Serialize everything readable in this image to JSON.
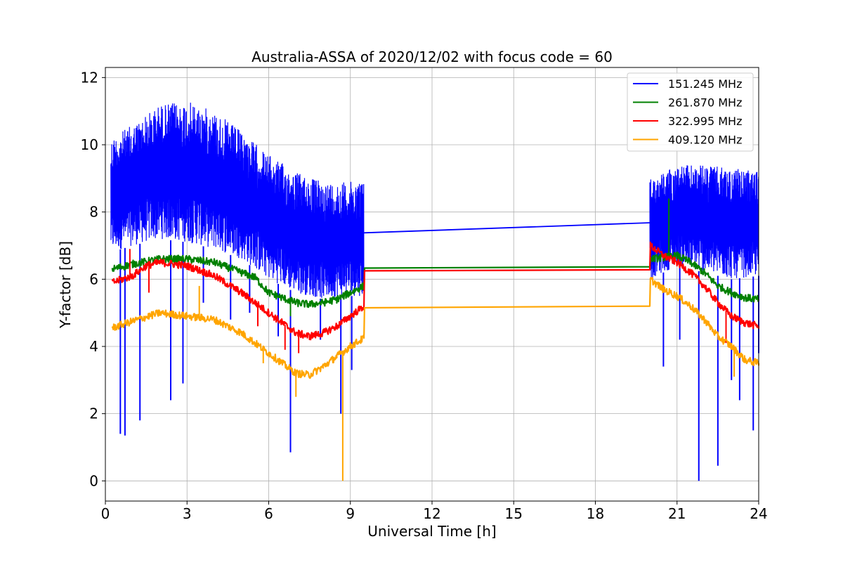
{
  "chart_data": {
    "type": "line",
    "title": "Australia-ASSA of 2020/12/02 with focus code = 60",
    "xlabel": "Universal Time [h]",
    "ylabel": "Y-factor [dB]",
    "xlim": [
      0,
      24
    ],
    "ylim": [
      -0.6,
      12.3
    ],
    "xticks": [
      0,
      3,
      6,
      9,
      12,
      15,
      18,
      21,
      24
    ],
    "yticks": [
      0,
      2,
      4,
      6,
      8,
      10,
      12
    ],
    "grid": true,
    "legend_position": "top-right",
    "series": [
      {
        "name": "151.245 MHz",
        "color": "#0000ff",
        "center": [
          [
            0.2,
            8.6
          ],
          [
            1,
            8.9
          ],
          [
            2,
            9.3
          ],
          [
            3,
            9.4
          ],
          [
            4,
            9.2
          ],
          [
            5,
            8.8
          ],
          [
            6,
            8.2
          ],
          [
            7,
            7.7
          ],
          [
            8,
            7.3
          ],
          [
            9,
            7.2
          ],
          [
            9.5,
            7.3
          ],
          [
            20,
            7.6
          ],
          [
            21,
            7.9
          ],
          [
            22,
            7.8
          ],
          [
            23,
            7.6
          ],
          [
            24,
            7.5
          ]
        ],
        "top": [
          [
            0.2,
            10.2
          ],
          [
            1,
            10.6
          ],
          [
            2,
            11.2
          ],
          [
            3,
            11.3
          ],
          [
            4,
            11.0
          ],
          [
            5,
            10.4
          ],
          [
            6,
            9.7
          ],
          [
            7,
            9.2
          ],
          [
            8,
            8.9
          ],
          [
            9,
            8.9
          ],
          [
            9.5,
            9.0
          ],
          [
            20,
            9.0
          ],
          [
            21,
            9.4
          ],
          [
            22,
            9.4
          ],
          [
            23,
            9.3
          ],
          [
            24,
            9.2
          ]
        ],
        "bottom": [
          [
            0.2,
            6.8
          ],
          [
            1,
            7.0
          ],
          [
            2,
            7.2
          ],
          [
            3,
            7.1
          ],
          [
            4,
            6.9
          ],
          [
            5,
            6.6
          ],
          [
            6,
            6.0
          ],
          [
            7,
            5.6
          ],
          [
            8,
            5.4
          ],
          [
            9,
            5.5
          ],
          [
            9.5,
            5.5
          ],
          [
            20,
            6.0
          ],
          [
            21,
            6.4
          ],
          [
            22,
            6.2
          ],
          [
            23,
            6.0
          ],
          [
            24,
            6.1
          ]
        ],
        "spikes": [
          [
            0.55,
            1.4
          ],
          [
            0.72,
            1.35
          ],
          [
            1.27,
            1.8
          ],
          [
            2.4,
            2.4
          ],
          [
            2.85,
            2.9
          ],
          [
            3.6,
            5.3
          ],
          [
            4.6,
            4.8
          ],
          [
            5.3,
            5.0
          ],
          [
            6.35,
            4.3
          ],
          [
            6.8,
            0.85
          ],
          [
            7.9,
            4.2
          ],
          [
            8.65,
            2.0
          ],
          [
            9.05,
            3.3
          ],
          [
            20.5,
            3.4
          ],
          [
            21.1,
            4.2
          ],
          [
            21.8,
            0.0
          ],
          [
            22.5,
            0.45
          ],
          [
            23.0,
            3.0
          ],
          [
            23.3,
            2.4
          ],
          [
            23.8,
            1.5
          ],
          [
            24.0,
            3.8
          ]
        ],
        "gap_line": [
          [
            9.5,
            7.38
          ],
          [
            20,
            7.68
          ]
        ]
      },
      {
        "name": "261.870 MHz",
        "color": "#008000",
        "points": [
          [
            0.25,
            6.3
          ],
          [
            1,
            6.45
          ],
          [
            2,
            6.6
          ],
          [
            3,
            6.6
          ],
          [
            4,
            6.5
          ],
          [
            5,
            6.2
          ],
          [
            5.5,
            6.05
          ],
          [
            6,
            5.6
          ],
          [
            6.5,
            5.45
          ],
          [
            7,
            5.3
          ],
          [
            7.5,
            5.25
          ],
          [
            8,
            5.3
          ],
          [
            8.5,
            5.4
          ],
          [
            9,
            5.6
          ],
          [
            9.5,
            5.8
          ],
          [
            9.52,
            6.33
          ],
          [
            20,
            6.37
          ],
          [
            20.02,
            6.6
          ],
          [
            21,
            6.7
          ],
          [
            21.5,
            6.5
          ],
          [
            22,
            6.2
          ],
          [
            22.5,
            5.8
          ],
          [
            23,
            5.6
          ],
          [
            23.5,
            5.45
          ],
          [
            24,
            5.4
          ]
        ],
        "spikes": [
          [
            20.7,
            8.4
          ],
          [
            6.8,
            4.9
          ]
        ]
      },
      {
        "name": "322.995 MHz",
        "color": "#ff0000",
        "points": [
          [
            0.25,
            5.9
          ],
          [
            1,
            6.1
          ],
          [
            1.5,
            6.4
          ],
          [
            2,
            6.5
          ],
          [
            3,
            6.4
          ],
          [
            4,
            6.1
          ],
          [
            5,
            5.6
          ],
          [
            5.5,
            5.3
          ],
          [
            6,
            5.0
          ],
          [
            6.5,
            4.7
          ],
          [
            7,
            4.4
          ],
          [
            7.5,
            4.3
          ],
          [
            8,
            4.4
          ],
          [
            8.5,
            4.6
          ],
          [
            9,
            4.9
          ],
          [
            9.5,
            5.2
          ],
          [
            9.52,
            6.25
          ],
          [
            20,
            6.28
          ],
          [
            20.02,
            7.0
          ],
          [
            20.5,
            6.7
          ],
          [
            21,
            6.5
          ],
          [
            21.5,
            6.2
          ],
          [
            22,
            5.8
          ],
          [
            22.5,
            5.3
          ],
          [
            23,
            4.9
          ],
          [
            23.5,
            4.7
          ],
          [
            24,
            4.6
          ]
        ],
        "spikes": [
          [
            0.9,
            6.9
          ],
          [
            1.6,
            5.6
          ],
          [
            5.6,
            4.6
          ],
          [
            6.6,
            3.9
          ],
          [
            7.1,
            3.8
          ],
          [
            22.8,
            4.1
          ]
        ]
      },
      {
        "name": "409.120 MHz",
        "color": "#ffa500",
        "points": [
          [
            0.25,
            4.55
          ],
          [
            1,
            4.75
          ],
          [
            2,
            5.0
          ],
          [
            3,
            4.9
          ],
          [
            4,
            4.8
          ],
          [
            5,
            4.4
          ],
          [
            5.5,
            4.1
          ],
          [
            6,
            3.8
          ],
          [
            6.5,
            3.5
          ],
          [
            7,
            3.2
          ],
          [
            7.5,
            3.15
          ],
          [
            8,
            3.4
          ],
          [
            8.5,
            3.7
          ],
          [
            9,
            4.0
          ],
          [
            9.5,
            4.25
          ],
          [
            9.52,
            5.15
          ],
          [
            20,
            5.2
          ],
          [
            20.02,
            6.0
          ],
          [
            20.5,
            5.7
          ],
          [
            21,
            5.5
          ],
          [
            21.5,
            5.2
          ],
          [
            22,
            4.8
          ],
          [
            22.5,
            4.3
          ],
          [
            23,
            4.0
          ],
          [
            23.5,
            3.6
          ],
          [
            24,
            3.5
          ]
        ],
        "spikes": [
          [
            3.45,
            5.8
          ],
          [
            5.8,
            3.5
          ],
          [
            7.0,
            2.5
          ],
          [
            8.72,
            0.0
          ],
          [
            23.1,
            3.1
          ]
        ]
      }
    ]
  }
}
